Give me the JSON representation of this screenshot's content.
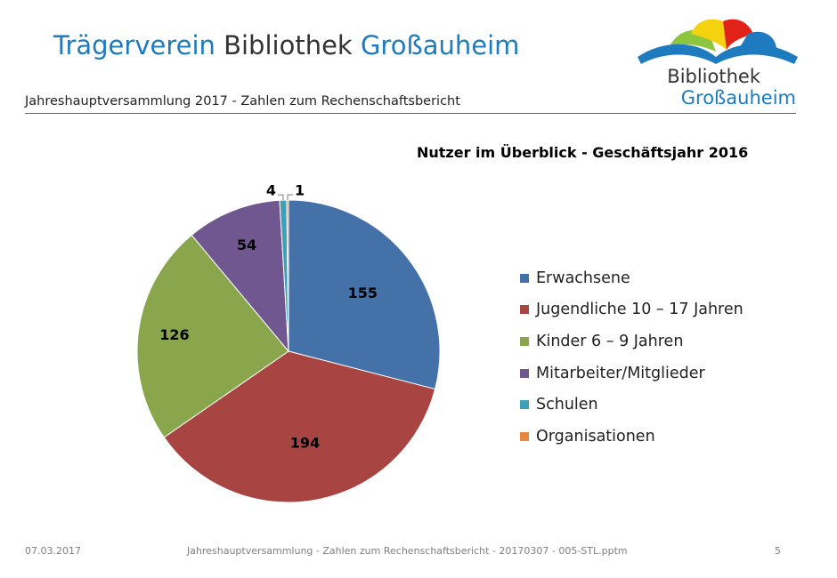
{
  "slide": {
    "title_part1": "Trägerverein",
    "title_part2": "Bibliothek",
    "title_part3": "Großauheim",
    "subtitle": "Jahreshauptversammlung 2017 - Zahlen zum Rechenschaftsbericht",
    "logo_line1": "Bibliothek",
    "logo_line2": "Großauheim",
    "colors": {
      "brand_blue": "#1f7bbf",
      "text_dark": "#333333"
    }
  },
  "footer": {
    "date": "07.03.2017",
    "center": "Jahreshauptversammlung - Zahlen zum Rechenschaftsbericht - 20170307 - 005-STL.pptm",
    "page": "5"
  },
  "chart_data": {
    "type": "pie",
    "title": "Nutzer im Überblick - Geschäftsjahr 2016",
    "legend_position": "right",
    "start_angle": "12 o'clock, clockwise",
    "slices": [
      {
        "label": "Erwachsene",
        "value": 155,
        "color": "#4472a8"
      },
      {
        "label": "Jugendliche 10 – 17 Jahren",
        "value": 194,
        "color": "#a84442"
      },
      {
        "label": "Kinder 6 – 9 Jahren",
        "value": 126,
        "color": "#8aa64c"
      },
      {
        "label": "Mitarbeiter/Mitglieder",
        "value": 54,
        "color": "#70578f"
      },
      {
        "label": "Schulen",
        "value": 4,
        "color": "#3ea0b8"
      },
      {
        "label": "Organisationen",
        "value": 1,
        "color": "#e8873b"
      }
    ]
  }
}
